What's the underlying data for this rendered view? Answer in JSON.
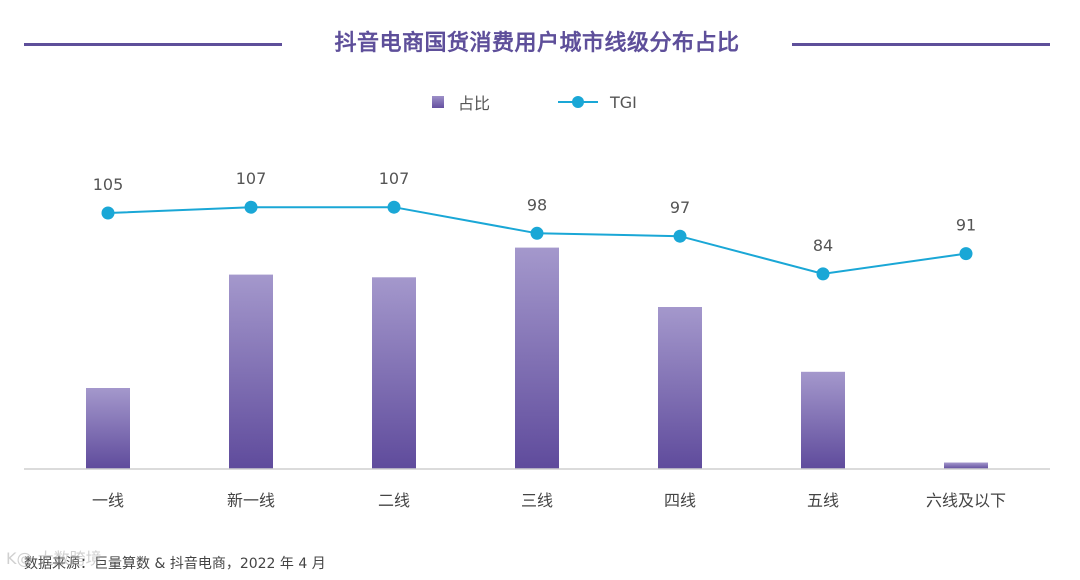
{
  "header": {
    "title": "抖音电商国货消费用户城市线级分布占比"
  },
  "chart_data": {
    "type": "bar",
    "title": "抖音电商国货消费用户城市线级分布占比",
    "categories": [
      "一线",
      "新一线",
      "二线",
      "三线",
      "四线",
      "五线",
      "六线及以下"
    ],
    "series": [
      {
        "name": "占比",
        "type": "bar",
        "values": [
          0.15,
          0.36,
          0.355,
          0.41,
          0.3,
          0.18,
          0.012
        ],
        "color": "#6550a0"
      },
      {
        "name": "TGI",
        "type": "line",
        "values": [
          105,
          107,
          107,
          98,
          97,
          84,
          91
        ],
        "color": "#1aa7d6"
      }
    ],
    "value_labels": [
      "105",
      "107",
      "107",
      "98",
      "97",
      "84",
      "91"
    ],
    "legend": [
      "占比",
      "TGI"
    ],
    "legend_position": "top-center",
    "grid": false
  },
  "footer": {
    "source": "数据来源：巨量算数 & 抖音电商，2022 年 4 月"
  },
  "watermark": {
    "text": "K@ 大数跨境"
  }
}
